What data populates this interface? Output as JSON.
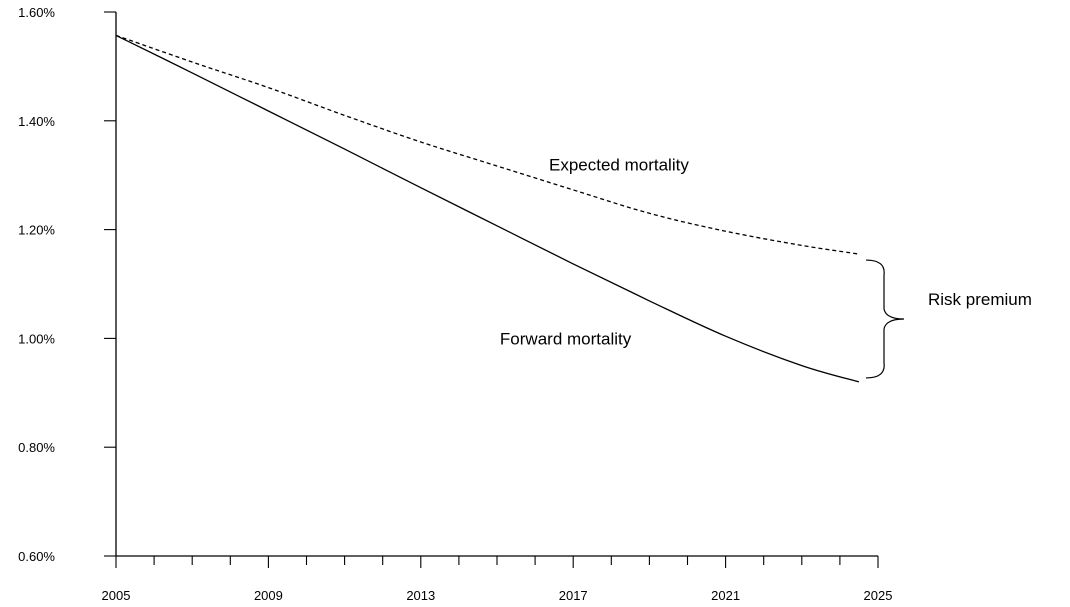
{
  "chart_data": {
    "type": "line",
    "title": "",
    "xlabel": "",
    "ylabel": "",
    "xlim": [
      2005,
      2025
    ],
    "ylim": [
      0.6,
      1.6
    ],
    "x_ticks": [
      2005,
      2009,
      2013,
      2017,
      2021,
      2025
    ],
    "x_tick_labels": [
      "2005",
      "2009",
      "2013",
      "2017",
      "2021",
      "2025"
    ],
    "x_minor_step": 1,
    "y_ticks": [
      0.6,
      0.8,
      1.0,
      1.2,
      1.4,
      1.6
    ],
    "y_tick_labels": [
      "0.60%",
      "0.80%",
      "1.00%",
      "1.20%",
      "1.40%",
      "1.60%"
    ],
    "grid": false,
    "series": [
      {
        "name": "Expected mortality",
        "style": "dashed",
        "x": [
          2005,
          2007,
          2009,
          2011,
          2013,
          2015,
          2017,
          2019,
          2021,
          2023,
          2024.5
        ],
        "y": [
          1.557,
          1.508,
          1.461,
          1.41,
          1.361,
          1.317,
          1.273,
          1.23,
          1.197,
          1.171,
          1.155
        ]
      },
      {
        "name": "Forward mortality",
        "style": "solid",
        "x": [
          2005,
          2007,
          2009,
          2011,
          2013,
          2015,
          2017,
          2019,
          2021,
          2023,
          2024.5
        ],
        "y": [
          1.557,
          1.488,
          1.418,
          1.348,
          1.277,
          1.207,
          1.137,
          1.069,
          1.004,
          0.95,
          0.92
        ]
      }
    ],
    "annotations": [
      {
        "text": "Expected mortality",
        "x": 2018.2,
        "y": 1.32
      },
      {
        "text": "Forward mortality",
        "x": 2016.8,
        "y": 1.0
      },
      {
        "text": "Risk premium"
      }
    ],
    "colors": {
      "lines": "#000000"
    }
  }
}
